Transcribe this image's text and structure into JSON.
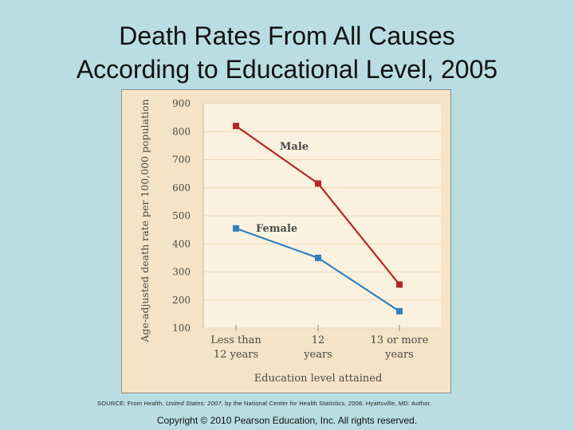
{
  "slide": {
    "title_line1": "Death Rates From All Causes",
    "title_line2": "According to Educational Level, 2005",
    "source_prefix": "SOURCE: From Health, ",
    "source_italic": "United States: 2007",
    "source_suffix": ", by the National Center for Health Statistics, 2008. Hyattsville, MD: Author.",
    "copyright": "Copyright © 2010 Pearson Education, Inc. All rights reserved."
  },
  "chart_data": {
    "type": "line",
    "categories": [
      [
        "Less than",
        "12 years"
      ],
      [
        "12",
        "years"
      ],
      [
        "13 or more",
        "years"
      ]
    ],
    "series": [
      {
        "name": "Male",
        "values": [
          820,
          615,
          255
        ],
        "color": "#b3262a"
      },
      {
        "name": "Female",
        "values": [
          455,
          350,
          160
        ],
        "color": "#2f7fc1"
      }
    ],
    "xlabel": "Education level attained",
    "ylabel": "Age-adjusted death rate per 100,000 population",
    "ylim": [
      100,
      900
    ],
    "yticks": [
      "100",
      "200",
      "300",
      "400",
      "500",
      "600",
      "700",
      "800",
      "900"
    ],
    "grid": true
  }
}
